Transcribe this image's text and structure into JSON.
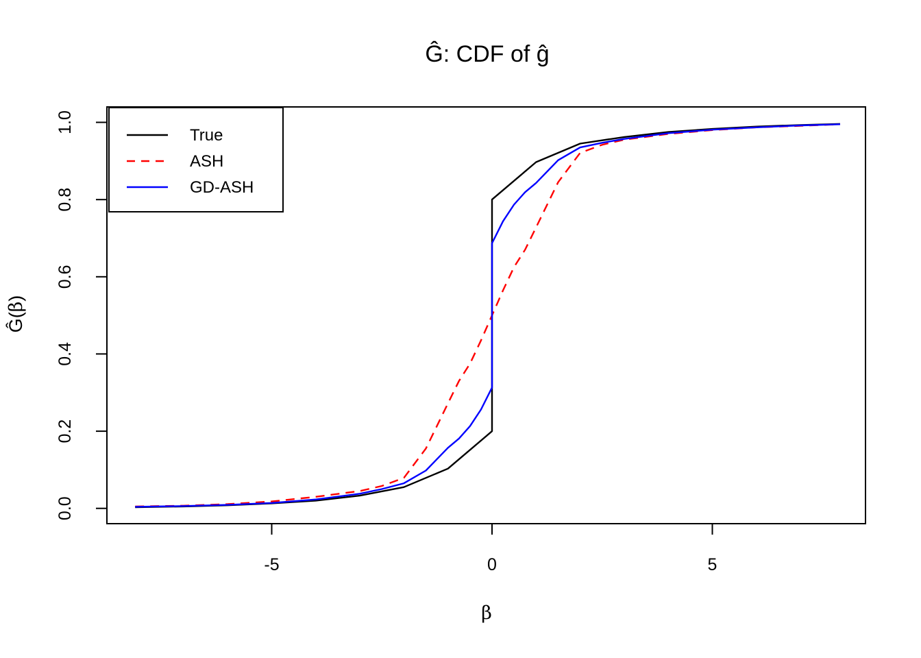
{
  "chart_data": {
    "type": "line",
    "title": "Ĝ: CDF of ĝ",
    "xlabel": "β",
    "ylabel": "Ĝ(β)",
    "ylabel_parts": {
      "prefix": "Ĝ(",
      "beta": "β",
      "suffix": ")"
    },
    "xlim": [
      -8.74,
      8.54
    ],
    "ylim": [
      -0.04,
      1.04
    ],
    "grid": false,
    "x_ticks": {
      "values": [
        -5,
        0,
        5
      ],
      "labels": [
        "-5",
        "0",
        "5"
      ]
    },
    "y_ticks": {
      "values": [
        0.0,
        0.2,
        0.4,
        0.6,
        0.8,
        1.0
      ],
      "labels": [
        "0.0",
        "0.2",
        "0.4",
        "0.6",
        "0.8",
        "1.0"
      ]
    },
    "legend": {
      "position": "topleft",
      "entries": [
        "True",
        "ASH",
        "GD-ASH"
      ]
    },
    "series": [
      {
        "name": "True",
        "color": "#000000",
        "line_style": "solid",
        "x": [
          -8.1,
          -7,
          -6,
          -5,
          -4,
          -3,
          -2,
          -1,
          0,
          0,
          1,
          2,
          3,
          4,
          5,
          6,
          7,
          7.9
        ],
        "y": [
          0.003,
          0.005,
          0.008,
          0.013,
          0.02,
          0.033,
          0.055,
          0.103,
          0.2,
          0.8,
          0.897,
          0.945,
          0.962,
          0.975,
          0.983,
          0.989,
          0.993,
          0.996
        ]
      },
      {
        "name": "ASH",
        "color": "#FF0000",
        "line_style": "dashed",
        "x": [
          -8.1,
          -7,
          -6,
          -5,
          -4,
          -3,
          -2.5,
          -2,
          -1.5,
          -1,
          -0.75,
          -0.5,
          -0.25,
          0,
          0.25,
          0.5,
          0.75,
          1,
          1.5,
          2,
          2.5,
          3,
          4,
          5,
          6,
          7,
          7.9
        ],
        "y": [
          0.005,
          0.007,
          0.011,
          0.018,
          0.03,
          0.045,
          0.058,
          0.079,
          0.155,
          0.272,
          0.33,
          0.375,
          0.435,
          0.5,
          0.565,
          0.625,
          0.67,
          0.728,
          0.845,
          0.921,
          0.942,
          0.955,
          0.97,
          0.98,
          0.987,
          0.991,
          0.995
        ]
      },
      {
        "name": "GD-ASH",
        "color": "#0000FF",
        "line_style": "solid",
        "x": [
          -8.1,
          -7,
          -6,
          -5,
          -4,
          -3,
          -2.5,
          -2,
          -1.5,
          -1,
          -0.75,
          -0.5,
          -0.25,
          0,
          0,
          0.25,
          0.5,
          0.75,
          1,
          1.5,
          2,
          2.5,
          3,
          4,
          5,
          6,
          7,
          7.9
        ],
        "y": [
          0.004,
          0.006,
          0.009,
          0.014,
          0.023,
          0.038,
          0.05,
          0.065,
          0.098,
          0.157,
          0.181,
          0.213,
          0.256,
          0.313,
          0.687,
          0.744,
          0.787,
          0.819,
          0.843,
          0.902,
          0.935,
          0.947,
          0.957,
          0.972,
          0.981,
          0.987,
          0.992,
          0.995
        ]
      }
    ]
  }
}
